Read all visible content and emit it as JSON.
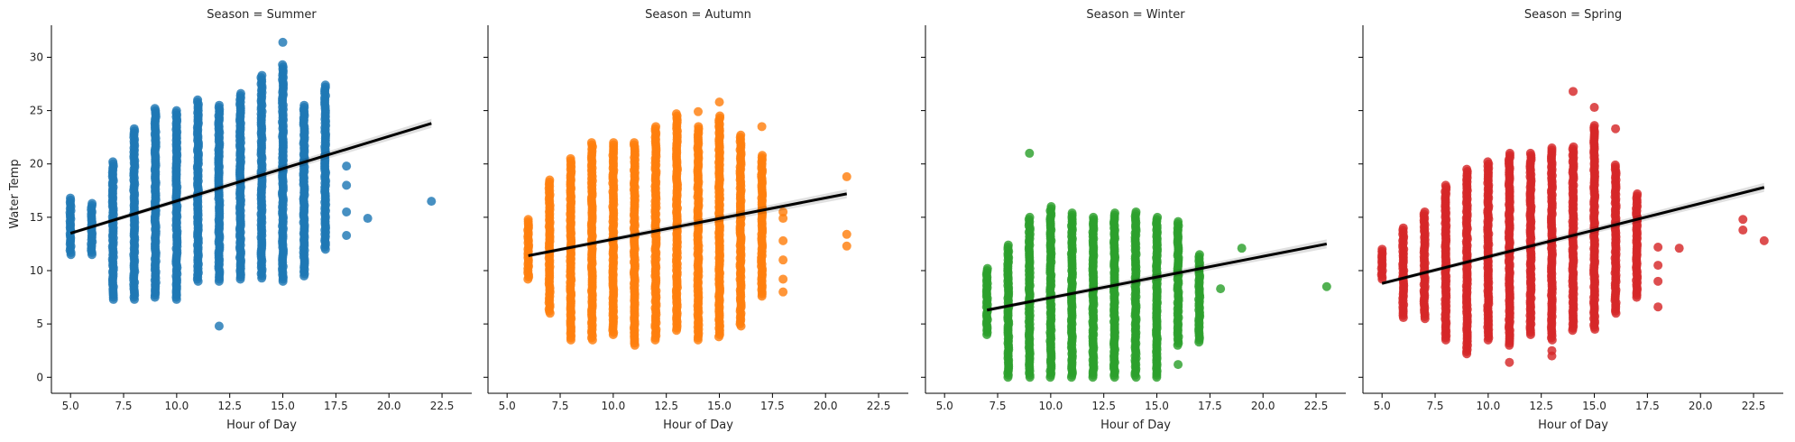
{
  "figure": {
    "x_label": "Hour of Day",
    "y_label": "Water Temp",
    "x_ticks": [
      5.0,
      7.5,
      10.0,
      12.5,
      15.0,
      17.5,
      20.0,
      22.5
    ],
    "x_tick_labels": [
      "5.0",
      "7.5",
      "10.0",
      "12.5",
      "15.0",
      "17.5",
      "20.0",
      "22.5"
    ],
    "y_ticks": [
      0,
      5,
      10,
      15,
      20,
      25,
      30
    ],
    "y_tick_labels": [
      "0",
      "5",
      "10",
      "15",
      "20",
      "25",
      "30"
    ],
    "xlim": [
      4.1,
      23.9
    ],
    "ylim": [
      -1.5,
      33
    ],
    "regression_color": "#000000"
  },
  "chart_data": [
    {
      "type": "scatter",
      "title": "Season = Summer",
      "color": "#1f77b4",
      "columns": [
        {
          "x": 5,
          "ymin": 11.5,
          "ymax": 16.8
        },
        {
          "x": 6,
          "ymin": 11.5,
          "ymax": 16.3
        },
        {
          "x": 7,
          "ymin": 7.3,
          "ymax": 20.2
        },
        {
          "x": 8,
          "ymin": 7.3,
          "ymax": 23.3
        },
        {
          "x": 9,
          "ymin": 7.5,
          "ymax": 25.2
        },
        {
          "x": 10,
          "ymin": 7.3,
          "ymax": 25.0
        },
        {
          "x": 11,
          "ymin": 9.0,
          "ymax": 26.0
        },
        {
          "x": 12,
          "ymin": 9.0,
          "ymax": 25.5
        },
        {
          "x": 13,
          "ymin": 9.2,
          "ymax": 26.6
        },
        {
          "x": 14,
          "ymin": 9.3,
          "ymax": 28.3
        },
        {
          "x": 15,
          "ymin": 9.0,
          "ymax": 29.3
        },
        {
          "x": 16,
          "ymin": 9.5,
          "ymax": 25.5
        },
        {
          "x": 17,
          "ymin": 12.0,
          "ymax": 27.4
        }
      ],
      "points": [
        {
          "x": 12,
          "y": 4.8
        },
        {
          "x": 15,
          "y": 31.4
        },
        {
          "x": 18,
          "y": 13.3
        },
        {
          "x": 18,
          "y": 15.5
        },
        {
          "x": 18,
          "y": 18.0
        },
        {
          "x": 18,
          "y": 19.8
        },
        {
          "x": 19,
          "y": 14.9
        },
        {
          "x": 22,
          "y": 16.5
        }
      ],
      "regression": {
        "x": [
          5,
          22
        ],
        "y": [
          13.5,
          23.8
        ]
      }
    },
    {
      "type": "scatter",
      "title": "Season = Autumn",
      "color": "#ff7f0e",
      "columns": [
        {
          "x": 6,
          "ymin": 9.2,
          "ymax": 14.8
        },
        {
          "x": 7,
          "ymin": 6.0,
          "ymax": 18.5
        },
        {
          "x": 8,
          "ymin": 3.5,
          "ymax": 20.5
        },
        {
          "x": 9,
          "ymin": 3.5,
          "ymax": 22.0
        },
        {
          "x": 10,
          "ymin": 4.0,
          "ymax": 22.0
        },
        {
          "x": 11,
          "ymin": 3.0,
          "ymax": 22.0
        },
        {
          "x": 12,
          "ymin": 3.5,
          "ymax": 23.5
        },
        {
          "x": 13,
          "ymin": 4.4,
          "ymax": 24.7
        },
        {
          "x": 14,
          "ymin": 3.5,
          "ymax": 23.5
        },
        {
          "x": 15,
          "ymin": 3.8,
          "ymax": 24.5
        },
        {
          "x": 16,
          "ymin": 4.8,
          "ymax": 22.7
        },
        {
          "x": 17,
          "ymin": 7.6,
          "ymax": 20.8
        }
      ],
      "points": [
        {
          "x": 14,
          "y": 24.9
        },
        {
          "x": 15,
          "y": 25.8
        },
        {
          "x": 17,
          "y": 23.5
        },
        {
          "x": 18,
          "y": 8.0
        },
        {
          "x": 18,
          "y": 9.2
        },
        {
          "x": 18,
          "y": 11.0
        },
        {
          "x": 18,
          "y": 12.8
        },
        {
          "x": 18,
          "y": 14.9
        },
        {
          "x": 18,
          "y": 15.5
        },
        {
          "x": 21,
          "y": 12.3
        },
        {
          "x": 21,
          "y": 13.4
        },
        {
          "x": 21,
          "y": 18.8
        }
      ],
      "regression": {
        "x": [
          6,
          21
        ],
        "y": [
          11.4,
          17.2
        ]
      }
    },
    {
      "type": "scatter",
      "title": "Season = Winter",
      "color": "#2ca02c",
      "columns": [
        {
          "x": 7,
          "ymin": 4.0,
          "ymax": 10.2
        },
        {
          "x": 8,
          "ymin": 0.0,
          "ymax": 12.4
        },
        {
          "x": 9,
          "ymin": 0.0,
          "ymax": 15.0
        },
        {
          "x": 10,
          "ymin": 0.0,
          "ymax": 16.0
        },
        {
          "x": 11,
          "ymin": 0.0,
          "ymax": 15.4
        },
        {
          "x": 12,
          "ymin": 0.0,
          "ymax": 15.0
        },
        {
          "x": 13,
          "ymin": 0.0,
          "ymax": 15.4
        },
        {
          "x": 14,
          "ymin": 0.0,
          "ymax": 15.5
        },
        {
          "x": 15,
          "ymin": 0.0,
          "ymax": 15.0
        },
        {
          "x": 16,
          "ymin": 3.0,
          "ymax": 14.6
        },
        {
          "x": 17,
          "ymin": 3.3,
          "ymax": 11.5
        }
      ],
      "points": [
        {
          "x": 9,
          "y": 21.0
        },
        {
          "x": 16,
          "y": 1.2
        },
        {
          "x": 18,
          "y": 8.3
        },
        {
          "x": 19,
          "y": 12.1
        },
        {
          "x": 23,
          "y": 8.5
        }
      ],
      "regression": {
        "x": [
          7,
          23
        ],
        "y": [
          6.3,
          12.5
        ]
      }
    },
    {
      "type": "scatter",
      "title": "Season = Spring",
      "color": "#d62728",
      "columns": [
        {
          "x": 5,
          "ymin": 9.2,
          "ymax": 12.0
        },
        {
          "x": 6,
          "ymin": 5.6,
          "ymax": 14.0
        },
        {
          "x": 7,
          "ymin": 5.5,
          "ymax": 15.5
        },
        {
          "x": 8,
          "ymin": 3.5,
          "ymax": 18.0
        },
        {
          "x": 9,
          "ymin": 2.2,
          "ymax": 19.5
        },
        {
          "x": 10,
          "ymin": 3.5,
          "ymax": 20.2
        },
        {
          "x": 11,
          "ymin": 3.0,
          "ymax": 21.0
        },
        {
          "x": 12,
          "ymin": 4.0,
          "ymax": 21.0
        },
        {
          "x": 13,
          "ymin": 3.5,
          "ymax": 21.5
        },
        {
          "x": 14,
          "ymin": 4.4,
          "ymax": 21.6
        },
        {
          "x": 15,
          "ymin": 4.5,
          "ymax": 23.6
        },
        {
          "x": 16,
          "ymin": 6.0,
          "ymax": 19.9
        },
        {
          "x": 17,
          "ymin": 7.5,
          "ymax": 17.2
        }
      ],
      "points": [
        {
          "x": 11,
          "y": 1.4
        },
        {
          "x": 13,
          "y": 2.0
        },
        {
          "x": 13,
          "y": 2.5
        },
        {
          "x": 14,
          "y": 26.8
        },
        {
          "x": 15,
          "y": 25.3
        },
        {
          "x": 16,
          "y": 23.3
        },
        {
          "x": 18,
          "y": 6.6
        },
        {
          "x": 18,
          "y": 9.0
        },
        {
          "x": 18,
          "y": 10.5
        },
        {
          "x": 18,
          "y": 12.2
        },
        {
          "x": 19,
          "y": 12.1
        },
        {
          "x": 22,
          "y": 13.8
        },
        {
          "x": 22,
          "y": 14.8
        },
        {
          "x": 23,
          "y": 12.8
        }
      ],
      "regression": {
        "x": [
          5,
          23
        ],
        "y": [
          8.8,
          17.8
        ]
      }
    }
  ]
}
